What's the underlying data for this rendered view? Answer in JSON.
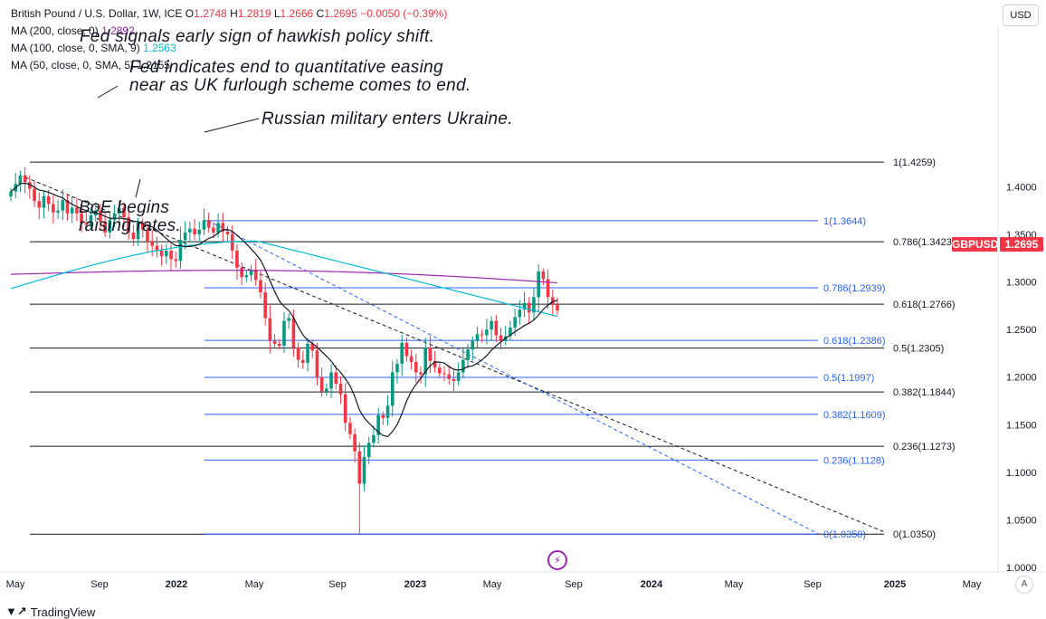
{
  "header": {
    "symbol_title": "British Pound / U.S. Dollar, 1W, ICE",
    "ohlc": [
      {
        "label": "O",
        "value": "1.2748"
      },
      {
        "label": "H",
        "value": "1.2819"
      },
      {
        "label": "L",
        "value": "1.2666"
      },
      {
        "label": "C",
        "value": "1.2695"
      }
    ],
    "change": "−0.0050 (−0.39%)",
    "ma_lines": [
      {
        "label": "MA (200, close, 0)",
        "value": "1.2892",
        "color": "#9c27b0"
      },
      {
        "label": "MA (100, close, 0, SMA, 9)",
        "value": "1.2563",
        "color": "#00bcd4"
      },
      {
        "label": "MA (50, close, 0, SMA, 5)",
        "value": "1.2155",
        "color": "#131722"
      }
    ]
  },
  "currency_button": "USD",
  "price_tag": {
    "symbol": "GBPUSD",
    "value": "1.2695"
  },
  "auto_button": "A",
  "brand": "TradingView",
  "annotations": [
    "Fed signals early sign of hawkish policy shift.",
    "Fed indicates end to quantitative easing",
    "near as UK furlough scheme comes to end.",
    "Russian military enters Ukraine.",
    "BoE begins",
    "raising rates."
  ],
  "chart_data": {
    "type": "candlestick",
    "title": "British Pound / U.S. Dollar, 1W, ICE",
    "y_axis": {
      "range": [
        1.0,
        1.43
      ],
      "ticks": [
        "1.4000",
        "1.3500",
        "1.3000",
        "1.2500",
        "1.2000",
        "1.1500",
        "1.1000",
        "1.0500",
        "1.0000"
      ],
      "tick_values": [
        1.4,
        1.35,
        1.3,
        1.25,
        1.2,
        1.15,
        1.1,
        1.05,
        1.0
      ]
    },
    "x_axis": {
      "ticks": [
        "May",
        "Sep",
        "2022",
        "May",
        "Sep",
        "2023",
        "May",
        "Sep",
        "2024",
        "May",
        "Sep",
        "2025",
        "May"
      ]
    },
    "grid": false,
    "colors": {
      "up": "#089981",
      "down": "#f23645",
      "fib_black": "#131722",
      "fib_blue": "#2962ff",
      "ma200": "#9c27b0",
      "ma100": "#00bcd4",
      "ma50": "#131722"
    },
    "fib_black_levels": [
      {
        "label": "1(1.4259)",
        "value": 1.4259
      },
      {
        "label": "0.786(1.3423)",
        "value": 1.3423
      },
      {
        "label": "0.618(1.2766)",
        "value": 1.2766
      },
      {
        "label": "0.5(1.2305)",
        "value": 1.2305
      },
      {
        "label": "0.382(1.1844)",
        "value": 1.1844
      },
      {
        "label": "0.236(1.1273)",
        "value": 1.1273
      },
      {
        "label": "0(1.0350)",
        "value": 1.035
      }
    ],
    "fib_blue_levels": [
      {
        "label": "1(1.3644)",
        "value": 1.3644
      },
      {
        "label": "0.786(1.2939)",
        "value": 1.2939
      },
      {
        "label": "0.618(1.2386)",
        "value": 1.2386
      },
      {
        "label": "0.5(1.1997)",
        "value": 1.1997
      },
      {
        "label": "0.382(1.1609)",
        "value": 1.1609
      },
      {
        "label": "0.236(1.1128)",
        "value": 1.1128
      },
      {
        "label": "0(1.0350)",
        "value": 1.035
      }
    ],
    "closes": [
      1.395,
      1.403,
      1.412,
      1.405,
      1.398,
      1.385,
      1.378,
      1.39,
      1.382,
      1.373,
      1.375,
      1.386,
      1.372,
      1.378,
      1.372,
      1.362,
      1.36,
      1.37,
      1.375,
      1.363,
      1.352,
      1.365,
      1.372,
      1.378,
      1.368,
      1.352,
      1.345,
      1.362,
      1.355,
      1.343,
      1.338,
      1.333,
      1.327,
      1.333,
      1.324,
      1.322,
      1.344,
      1.352,
      1.356,
      1.35,
      1.355,
      1.365,
      1.357,
      1.352,
      1.362,
      1.353,
      1.35,
      1.333,
      1.315,
      1.305,
      1.307,
      1.313,
      1.302,
      1.289,
      1.262,
      1.238,
      1.235,
      1.233,
      1.259,
      1.262,
      1.231,
      1.218,
      1.215,
      1.235,
      1.228,
      1.2,
      1.185,
      1.188,
      1.205,
      1.193,
      1.182,
      1.152,
      1.14,
      1.122,
      1.088,
      1.116,
      1.131,
      1.139,
      1.16,
      1.157,
      1.17,
      1.205,
      1.214,
      1.236,
      1.222,
      1.216,
      1.205,
      1.203,
      1.231,
      1.217,
      1.21,
      1.204,
      1.203,
      1.198,
      1.196,
      1.205,
      1.218,
      1.229,
      1.238,
      1.245,
      1.244,
      1.25,
      1.259,
      1.244,
      1.238,
      1.243,
      1.252,
      1.263,
      1.271,
      1.278,
      1.268,
      1.284,
      1.311,
      1.303,
      1.284,
      1.276,
      1.27
    ]
  }
}
